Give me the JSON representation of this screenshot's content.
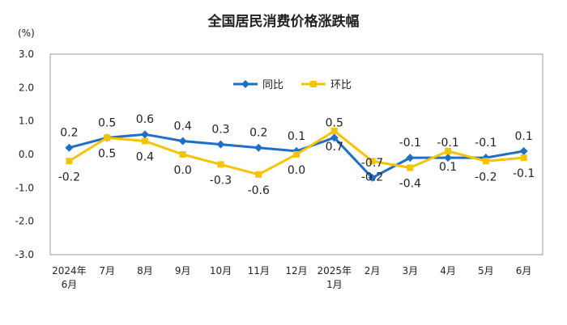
{
  "chart_data": {
    "type": "line",
    "title": "全国居民消费价格涨跌幅",
    "unit": "(%)",
    "categories": [
      [
        "2024年",
        "6月"
      ],
      [
        "7月"
      ],
      [
        "8月"
      ],
      [
        "9月"
      ],
      [
        "10月"
      ],
      [
        "11月"
      ],
      [
        "12月"
      ],
      [
        "2025年",
        "1月"
      ],
      [
        "2月"
      ],
      [
        "3月"
      ],
      [
        "4月"
      ],
      [
        "5月"
      ],
      [
        "6月"
      ]
    ],
    "yticks": [
      "3.0",
      "2.0",
      "1.0",
      "0.0",
      "-1.0",
      "-2.0",
      "-3.0"
    ],
    "ylim": [
      -3,
      3
    ],
    "grid": false,
    "legend": "top-center",
    "series": [
      {
        "name": "同比",
        "color": "#1F6FC5",
        "marker": "diamond",
        "values": [
          0.2,
          0.5,
          0.6,
          0.4,
          0.3,
          0.2,
          0.1,
          0.5,
          -0.7,
          -0.1,
          -0.1,
          -0.1,
          0.1
        ],
        "labels": [
          "0.2",
          "0.5",
          "0.6",
          "0.4",
          "0.3",
          "0.2",
          "0.1",
          "0.5",
          "-0.7",
          "-0.1",
          "-0.1",
          "-0.1",
          "0.1"
        ]
      },
      {
        "name": "环比",
        "color": "#F5C400",
        "marker": "square",
        "values": [
          -0.2,
          0.5,
          0.4,
          0.0,
          -0.3,
          -0.6,
          0.0,
          0.7,
          -0.2,
          -0.4,
          0.1,
          -0.2,
          -0.1
        ],
        "labels": [
          "-0.2",
          "0.5",
          "0.4",
          "0.0",
          "-0.3",
          "-0.6",
          "0.0",
          "0.7",
          "-0.2",
          "-0.4",
          "0.1",
          "-0.2",
          "-0.1"
        ]
      }
    ]
  }
}
